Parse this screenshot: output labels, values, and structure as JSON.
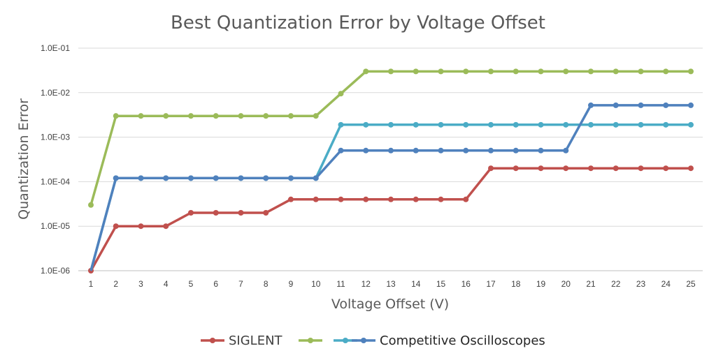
{
  "chart_data": {
    "type": "line",
    "title": "Best Quantization Error by Voltage Offset",
    "xlabel": "Voltage Offset (V)",
    "ylabel": "Quantization Error",
    "y_scale": "log",
    "ylim": [
      1e-06,
      0.1
    ],
    "y_ticks": [
      "1.0E-06",
      "1.0E-05",
      "1.0E-04",
      "1.0E-03",
      "1.0E-02",
      "1.0E-01"
    ],
    "categories": [
      "1",
      "2",
      "3",
      "4",
      "5",
      "6",
      "7",
      "8",
      "9",
      "10",
      "11",
      "12",
      "13",
      "14",
      "15",
      "16",
      "17",
      "18",
      "19",
      "20",
      "21",
      "22",
      "23",
      "24",
      "25"
    ],
    "grid": true,
    "legend_position": "bottom",
    "series": [
      {
        "name": "SIGLENT",
        "color": "#c0504d",
        "values": [
          1e-06,
          1e-05,
          1e-05,
          1e-05,
          2e-05,
          2e-05,
          2e-05,
          2e-05,
          4e-05,
          4e-05,
          4e-05,
          4e-05,
          4e-05,
          4e-05,
          4e-05,
          4e-05,
          0.0002,
          0.0002,
          0.0002,
          0.0002,
          0.0002,
          0.0002,
          0.0002,
          0.0002,
          0.0002
        ]
      },
      {
        "name": "",
        "color": "#9bbb59",
        "values": [
          3e-05,
          0.003,
          0.003,
          0.003,
          0.003,
          0.003,
          0.003,
          0.003,
          0.003,
          0.003,
          0.0095,
          0.03,
          0.03,
          0.03,
          0.03,
          0.03,
          0.03,
          0.03,
          0.03,
          0.03,
          0.03,
          0.03,
          0.03,
          0.03,
          0.03
        ]
      },
      {
        "name": "",
        "color": "#4bacc6",
        "values": [
          1e-06,
          0.00012,
          0.00012,
          0.00012,
          0.00012,
          0.00012,
          0.00012,
          0.00012,
          0.00012,
          0.00012,
          0.0019,
          0.0019,
          0.0019,
          0.0019,
          0.0019,
          0.0019,
          0.0019,
          0.0019,
          0.0019,
          0.0019,
          0.0019,
          0.0019,
          0.0019,
          0.0019,
          0.0019
        ]
      },
      {
        "name": "Competitive Oscilloscopes",
        "color": "#4f81bd",
        "values": [
          1e-06,
          0.00012,
          0.00012,
          0.00012,
          0.00012,
          0.00012,
          0.00012,
          0.00012,
          0.00012,
          0.00012,
          0.0005,
          0.0005,
          0.0005,
          0.0005,
          0.0005,
          0.0005,
          0.0005,
          0.0005,
          0.0005,
          0.0005,
          0.0052,
          0.0052,
          0.0052,
          0.0052,
          0.0052
        ]
      }
    ]
  }
}
